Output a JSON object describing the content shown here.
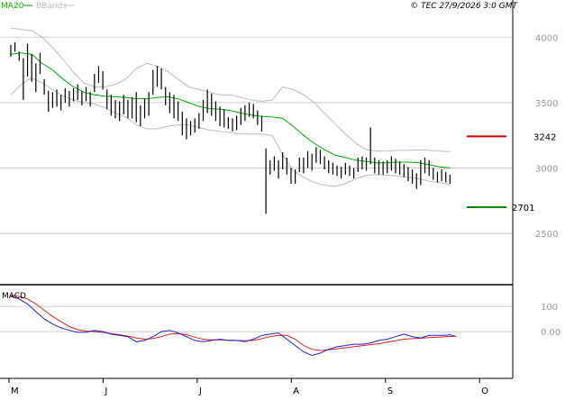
{
  "header": {
    "ma_label": "MA20",
    "bbands_label": "BBands",
    "copyright": "© TEC 27/9/2026 3:0 GMT"
  },
  "colors": {
    "price": "#000000",
    "ma": "#00aa00",
    "bbands": "#bbbbbb",
    "macd": "#2222cc",
    "signal": "#dd2222",
    "resistance": "#cc0000",
    "support": "#008800",
    "grid": "#cccccc"
  },
  "chart_data": [
    {
      "type": "line",
      "panel": "price",
      "y_ticks": [
        4000,
        3500,
        3000,
        2500
      ],
      "y_tick_labels": [
        "4000",
        "3500",
        "3000",
        "2500"
      ],
      "ylim": [
        2150,
        4250
      ],
      "x_month_labels": [
        "M",
        "J",
        "J",
        "A",
        "S",
        "O"
      ],
      "x_month_positions": [
        0,
        45,
        90,
        135,
        180,
        225
      ],
      "xlim": [
        -3,
        240
      ],
      "bars": [
        [
          3940,
          3850
        ],
        [
          3960,
          3890
        ],
        [
          3890,
          3820
        ],
        [
          3840,
          3520
        ],
        [
          3950,
          3700
        ],
        [
          3870,
          3660
        ],
        [
          3800,
          3580
        ],
        [
          3880,
          3720
        ],
        [
          3680,
          3560
        ],
        [
          3590,
          3430
        ],
        [
          3580,
          3460
        ],
        [
          3600,
          3470
        ],
        [
          3560,
          3440
        ],
        [
          3610,
          3500
        ],
        [
          3590,
          3470
        ],
        [
          3610,
          3510
        ],
        [
          3640,
          3520
        ],
        [
          3590,
          3480
        ],
        [
          3620,
          3510
        ],
        [
          3580,
          3470
        ],
        [
          3720,
          3580
        ],
        [
          3780,
          3650
        ],
        [
          3740,
          3600
        ],
        [
          3600,
          3450
        ],
        [
          3560,
          3400
        ],
        [
          3520,
          3380
        ],
        [
          3510,
          3360
        ],
        [
          3560,
          3410
        ],
        [
          3520,
          3380
        ],
        [
          3540,
          3380
        ],
        [
          3580,
          3350
        ],
        [
          3480,
          3320
        ],
        [
          3530,
          3380
        ],
        [
          3580,
          3400
        ],
        [
          3750,
          3560
        ],
        [
          3780,
          3620
        ],
        [
          3760,
          3600
        ],
        [
          3620,
          3480
        ],
        [
          3580,
          3420
        ],
        [
          3560,
          3380
        ],
        [
          3510,
          3360
        ],
        [
          3430,
          3250
        ],
        [
          3380,
          3220
        ],
        [
          3360,
          3250
        ],
        [
          3380,
          3270
        ],
        [
          3420,
          3300
        ],
        [
          3520,
          3360
        ],
        [
          3600,
          3420
        ],
        [
          3570,
          3400
        ],
        [
          3510,
          3360
        ],
        [
          3470,
          3320
        ],
        [
          3450,
          3310
        ],
        [
          3390,
          3300
        ],
        [
          3380,
          3280
        ],
        [
          3400,
          3290
        ],
        [
          3460,
          3330
        ],
        [
          3480,
          3360
        ],
        [
          3500,
          3390
        ],
        [
          3490,
          3380
        ],
        [
          3440,
          3330
        ],
        [
          3400,
          3280
        ],
        [
          3150,
          2650
        ],
        [
          3060,
          2950
        ],
        [
          3090,
          2980
        ],
        [
          3060,
          2920
        ],
        [
          3120,
          2990
        ],
        [
          3080,
          2950
        ],
        [
          3000,
          2880
        ],
        [
          2990,
          2880
        ],
        [
          3080,
          2970
        ],
        [
          3080,
          2960
        ],
        [
          3130,
          3000
        ],
        [
          3110,
          2980
        ],
        [
          3160,
          3040
        ],
        [
          3140,
          3030
        ],
        [
          3090,
          2990
        ],
        [
          3060,
          2960
        ],
        [
          3040,
          2950
        ],
        [
          3020,
          2940
        ],
        [
          3010,
          2920
        ],
        [
          3040,
          2950
        ],
        [
          3020,
          2940
        ],
        [
          3000,
          2920
        ],
        [
          3080,
          2970
        ],
        [
          3090,
          2990
        ],
        [
          3080,
          2980
        ],
        [
          3310,
          3030
        ],
        [
          3080,
          2960
        ],
        [
          3060,
          2950
        ],
        [
          3050,
          2950
        ],
        [
          3060,
          2960
        ],
        [
          3090,
          2980
        ],
        [
          3070,
          2960
        ],
        [
          3050,
          2950
        ],
        [
          3030,
          2930
        ],
        [
          3010,
          2900
        ],
        [
          2990,
          2880
        ],
        [
          2960,
          2840
        ],
        [
          3060,
          2870
        ],
        [
          3080,
          2960
        ],
        [
          3060,
          2940
        ],
        [
          3000,
          2910
        ],
        [
          2970,
          2890
        ],
        [
          2990,
          2900
        ],
        [
          2970,
          2890
        ],
        [
          2950,
          2880
        ]
      ],
      "ma20": [
        [
          0,
          3870
        ],
        [
          5,
          3880
        ],
        [
          10,
          3870
        ],
        [
          15,
          3800
        ],
        [
          20,
          3750
        ],
        [
          25,
          3680
        ],
        [
          30,
          3620
        ],
        [
          35,
          3580
        ],
        [
          40,
          3560
        ],
        [
          45,
          3550
        ],
        [
          50,
          3545
        ],
        [
          55,
          3540
        ],
        [
          60,
          3530
        ],
        [
          65,
          3530
        ],
        [
          70,
          3540
        ],
        [
          75,
          3545
        ],
        [
          80,
          3530
        ],
        [
          85,
          3500
        ],
        [
          90,
          3470
        ],
        [
          95,
          3455
        ],
        [
          100,
          3450
        ],
        [
          105,
          3440
        ],
        [
          110,
          3420
        ],
        [
          115,
          3405
        ],
        [
          120,
          3395
        ],
        [
          125,
          3390
        ],
        [
          130,
          3380
        ],
        [
          135,
          3320
        ],
        [
          140,
          3250
        ],
        [
          145,
          3190
        ],
        [
          150,
          3140
        ],
        [
          155,
          3100
        ],
        [
          160,
          3080
        ],
        [
          165,
          3060
        ],
        [
          170,
          3050
        ],
        [
          175,
          3040
        ],
        [
          180,
          3040
        ],
        [
          185,
          3045
        ],
        [
          190,
          3045
        ],
        [
          195,
          3040
        ],
        [
          200,
          3025
        ],
        [
          205,
          3010
        ],
        [
          210,
          3000
        ]
      ],
      "bb_upper": [
        [
          0,
          4070
        ],
        [
          5,
          4060
        ],
        [
          10,
          4050
        ],
        [
          15,
          4000
        ],
        [
          20,
          3920
        ],
        [
          25,
          3830
        ],
        [
          30,
          3730
        ],
        [
          35,
          3650
        ],
        [
          40,
          3620
        ],
        [
          45,
          3620
        ],
        [
          50,
          3640
        ],
        [
          55,
          3680
        ],
        [
          60,
          3760
        ],
        [
          65,
          3800
        ],
        [
          70,
          3780
        ],
        [
          75,
          3740
        ],
        [
          80,
          3680
        ],
        [
          85,
          3620
        ],
        [
          90,
          3600
        ],
        [
          95,
          3580
        ],
        [
          100,
          3560
        ],
        [
          105,
          3560
        ],
        [
          110,
          3540
        ],
        [
          115,
          3520
        ],
        [
          120,
          3510
        ],
        [
          125,
          3520
        ],
        [
          130,
          3620
        ],
        [
          135,
          3600
        ],
        [
          140,
          3560
        ],
        [
          145,
          3500
        ],
        [
          150,
          3420
        ],
        [
          155,
          3340
        ],
        [
          160,
          3260
        ],
        [
          165,
          3190
        ],
        [
          170,
          3140
        ],
        [
          175,
          3130
        ],
        [
          180,
          3130
        ],
        [
          185,
          3135
        ],
        [
          190,
          3135
        ],
        [
          195,
          3140
        ],
        [
          200,
          3135
        ],
        [
          205,
          3130
        ],
        [
          210,
          3125
        ]
      ],
      "bb_lower": [
        [
          0,
          3560
        ],
        [
          5,
          3640
        ],
        [
          10,
          3690
        ],
        [
          15,
          3650
        ],
        [
          20,
          3600
        ],
        [
          25,
          3550
        ],
        [
          30,
          3520
        ],
        [
          35,
          3500
        ],
        [
          40,
          3490
        ],
        [
          45,
          3460
        ],
        [
          50,
          3420
        ],
        [
          55,
          3390
        ],
        [
          60,
          3330
        ],
        [
          65,
          3300
        ],
        [
          70,
          3300
        ],
        [
          75,
          3320
        ],
        [
          80,
          3330
        ],
        [
          85,
          3330
        ],
        [
          90,
          3310
        ],
        [
          95,
          3290
        ],
        [
          100,
          3280
        ],
        [
          105,
          3270
        ],
        [
          110,
          3260
        ],
        [
          115,
          3260
        ],
        [
          120,
          3260
        ],
        [
          125,
          3250
        ],
        [
          130,
          3100
        ],
        [
          135,
          2980
        ],
        [
          140,
          2930
        ],
        [
          145,
          2890
        ],
        [
          150,
          2870
        ],
        [
          155,
          2860
        ],
        [
          160,
          2880
        ],
        [
          165,
          2920
        ],
        [
          170,
          2945
        ],
        [
          175,
          2950
        ],
        [
          180,
          2945
        ],
        [
          185,
          2940
        ],
        [
          190,
          2930
        ],
        [
          195,
          2920
        ],
        [
          200,
          2900
        ],
        [
          205,
          2890
        ],
        [
          210,
          2875
        ]
      ],
      "resistance": {
        "value": 3242,
        "label": "3242"
      },
      "support": {
        "value": 2701,
        "label": "2701"
      }
    },
    {
      "type": "line",
      "panel": "macd",
      "title": "MACD",
      "y_ticks": [
        100,
        0
      ],
      "y_tick_labels": [
        "100",
        "0.00"
      ],
      "ylim": [
        -175,
        165
      ],
      "macd": [
        [
          0,
          140
        ],
        [
          4,
          130
        ],
        [
          8,
          110
        ],
        [
          12,
          80
        ],
        [
          16,
          50
        ],
        [
          20,
          30
        ],
        [
          24,
          15
        ],
        [
          28,
          5
        ],
        [
          32,
          -3
        ],
        [
          36,
          -2
        ],
        [
          40,
          5
        ],
        [
          44,
          0
        ],
        [
          48,
          -10
        ],
        [
          52,
          -15
        ],
        [
          56,
          -20
        ],
        [
          60,
          -40
        ],
        [
          64,
          -35
        ],
        [
          68,
          -20
        ],
        [
          72,
          0
        ],
        [
          76,
          5
        ],
        [
          80,
          -5
        ],
        [
          84,
          -20
        ],
        [
          88,
          -35
        ],
        [
          92,
          -40
        ],
        [
          96,
          -35
        ],
        [
          100,
          -30
        ],
        [
          104,
          -35
        ],
        [
          108,
          -35
        ],
        [
          112,
          -40
        ],
        [
          116,
          -30
        ],
        [
          120,
          -15
        ],
        [
          124,
          -10
        ],
        [
          128,
          -5
        ],
        [
          132,
          -30
        ],
        [
          136,
          -55
        ],
        [
          140,
          -80
        ],
        [
          144,
          -95
        ],
        [
          148,
          -85
        ],
        [
          152,
          -70
        ],
        [
          156,
          -60
        ],
        [
          160,
          -55
        ],
        [
          164,
          -50
        ],
        [
          168,
          -50
        ],
        [
          172,
          -45
        ],
        [
          176,
          -35
        ],
        [
          180,
          -30
        ],
        [
          184,
          -20
        ],
        [
          188,
          -10
        ],
        [
          192,
          -20
        ],
        [
          196,
          -25
        ],
        [
          200,
          -15
        ],
        [
          204,
          -15
        ],
        [
          208,
          -15
        ],
        [
          210,
          -12
        ],
        [
          213,
          -20
        ]
      ],
      "signal": [
        [
          0,
          145
        ],
        [
          4,
          140
        ],
        [
          8,
          130
        ],
        [
          12,
          110
        ],
        [
          16,
          85
        ],
        [
          20,
          60
        ],
        [
          24,
          40
        ],
        [
          28,
          20
        ],
        [
          32,
          8
        ],
        [
          36,
          2
        ],
        [
          40,
          0
        ],
        [
          44,
          -3
        ],
        [
          48,
          -8
        ],
        [
          52,
          -12
        ],
        [
          56,
          -18
        ],
        [
          60,
          -25
        ],
        [
          64,
          -30
        ],
        [
          68,
          -28
        ],
        [
          72,
          -20
        ],
        [
          76,
          -10
        ],
        [
          80,
          -8
        ],
        [
          84,
          -12
        ],
        [
          88,
          -22
        ],
        [
          92,
          -30
        ],
        [
          96,
          -33
        ],
        [
          100,
          -33
        ],
        [
          104,
          -34
        ],
        [
          108,
          -35
        ],
        [
          112,
          -36
        ],
        [
          116,
          -35
        ],
        [
          120,
          -28
        ],
        [
          124,
          -20
        ],
        [
          128,
          -15
        ],
        [
          132,
          -15
        ],
        [
          136,
          -30
        ],
        [
          140,
          -55
        ],
        [
          144,
          -70
        ],
        [
          148,
          -75
        ],
        [
          152,
          -72
        ],
        [
          156,
          -68
        ],
        [
          160,
          -64
        ],
        [
          164,
          -60
        ],
        [
          168,
          -56
        ],
        [
          172,
          -52
        ],
        [
          176,
          -48
        ],
        [
          180,
          -42
        ],
        [
          184,
          -36
        ],
        [
          188,
          -30
        ],
        [
          192,
          -28
        ],
        [
          196,
          -26
        ],
        [
          200,
          -24
        ],
        [
          204,
          -22
        ],
        [
          208,
          -20
        ],
        [
          213,
          -18
        ]
      ]
    }
  ]
}
